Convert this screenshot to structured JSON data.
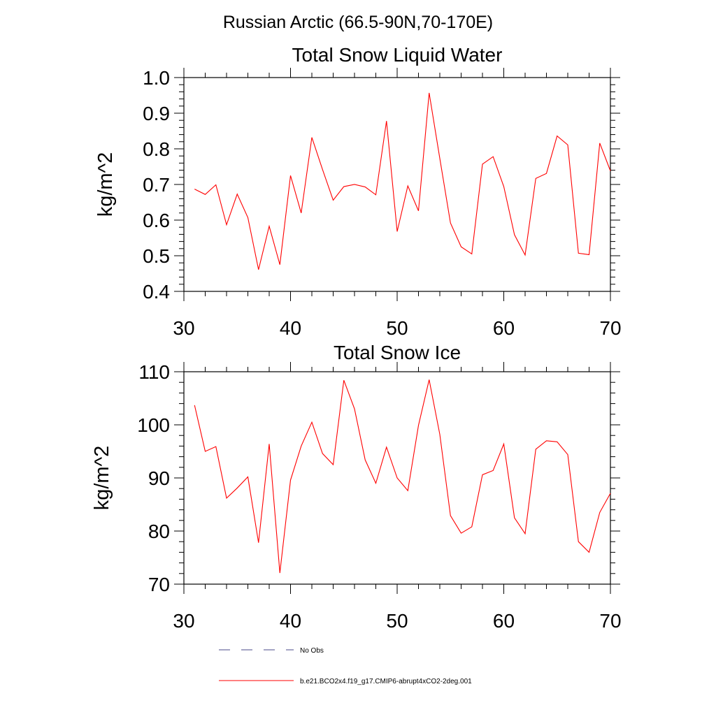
{
  "figure_title": "Russian Arctic (66.5-90N,70-170E)",
  "colors": {
    "model_line": "#ff0000",
    "obs_line": "#4a4a8a",
    "axis": "#000000"
  },
  "legend": {
    "items": [
      {
        "label": "No Obs",
        "style": "dashed"
      },
      {
        "label": "b.e21.BCO2x4.f19_g17.CMIP6-abrupt4xCO2-2deg.001",
        "style": "solid"
      }
    ]
  },
  "chart_data": [
    {
      "type": "line",
      "title": "Total Snow Liquid Water",
      "xlabel": "",
      "ylabel": "kg/m^2",
      "xlim": [
        30,
        70
      ],
      "ylim": [
        0.4,
        1.0
      ],
      "xticks": [
        "30",
        "40",
        "50",
        "60",
        "70"
      ],
      "yticks": [
        "0.4",
        "0.5",
        "0.6",
        "0.7",
        "0.8",
        "0.9",
        "1.0"
      ],
      "x": [
        31,
        32,
        33,
        34,
        35,
        36,
        37,
        38,
        39,
        40,
        41,
        42,
        43,
        44,
        45,
        46,
        47,
        48,
        49,
        50,
        51,
        52,
        53,
        54,
        55,
        56,
        57,
        58,
        59,
        60,
        61,
        62,
        63,
        64,
        65,
        66,
        67,
        68,
        69,
        70
      ],
      "series": [
        {
          "name": "b.e21.BCO2x4.f19_g17.CMIP6-abrupt4xCO2-2deg.001",
          "values": [
            0.687,
            0.672,
            0.699,
            0.587,
            0.673,
            0.607,
            0.461,
            0.583,
            0.475,
            0.725,
            0.62,
            0.832,
            0.742,
            0.656,
            0.694,
            0.7,
            0.693,
            0.671,
            0.878,
            0.568,
            0.696,
            0.626,
            0.957,
            0.773,
            0.592,
            0.525,
            0.505,
            0.757,
            0.778,
            0.694,
            0.559,
            0.502,
            0.717,
            0.731,
            0.836,
            0.811,
            0.507,
            0.503,
            0.816,
            0.738
          ]
        }
      ],
      "grid": false
    },
    {
      "type": "line",
      "title": "Total Snow Ice",
      "xlabel": "",
      "ylabel": "kg/m^2",
      "xlim": [
        30,
        70
      ],
      "ylim": [
        70,
        110
      ],
      "xticks": [
        "30",
        "40",
        "50",
        "60",
        "70"
      ],
      "yticks": [
        "70",
        "80",
        "90",
        "100",
        "110"
      ],
      "x": [
        31,
        32,
        33,
        34,
        35,
        36,
        37,
        38,
        39,
        40,
        41,
        42,
        43,
        44,
        45,
        46,
        47,
        48,
        49,
        50,
        51,
        52,
        53,
        54,
        55,
        56,
        57,
        58,
        59,
        60,
        61,
        62,
        63,
        64,
        65,
        66,
        67,
        68,
        69,
        70
      ],
      "series": [
        {
          "name": "b.e21.BCO2x4.f19_g17.CMIP6-abrupt4xCO2-2deg.001",
          "values": [
            103.7,
            95.0,
            95.9,
            86.2,
            88.1,
            90.2,
            77.8,
            96.4,
            72.1,
            89.6,
            96.0,
            100.5,
            94.6,
            92.5,
            108.4,
            103.0,
            93.4,
            89.0,
            95.8,
            90.0,
            87.6,
            99.9,
            108.5,
            98.2,
            82.9,
            79.6,
            80.8,
            90.6,
            91.4,
            96.4,
            82.5,
            79.5,
            95.4,
            97.0,
            96.8,
            94.4,
            78.0,
            76.0,
            83.5,
            87.1
          ]
        }
      ],
      "grid": false
    }
  ]
}
